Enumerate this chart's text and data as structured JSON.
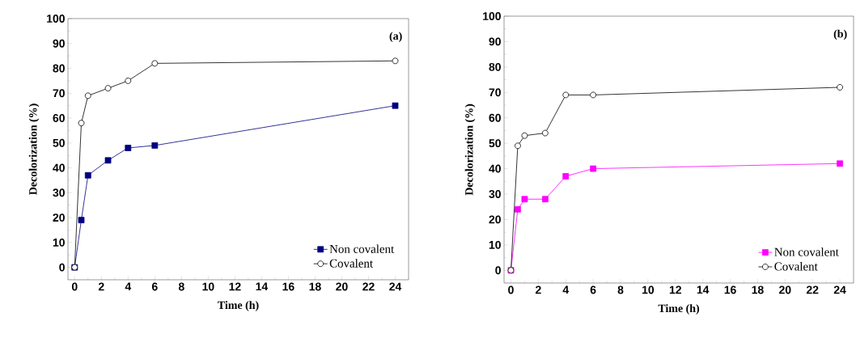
{
  "chart_data": [
    {
      "type": "line",
      "xlabel": "Time (h)",
      "ylabel": "Decolorization (%)",
      "annotations": [
        "(a)"
      ],
      "x": [
        0,
        0.5,
        1,
        2.5,
        4,
        6,
        24
      ],
      "xlim": [
        -0.5,
        25
      ],
      "ylim": [
        -5,
        100
      ],
      "xticks": [
        0,
        2,
        4,
        6,
        8,
        10,
        12,
        14,
        16,
        18,
        20,
        22,
        24
      ],
      "yticks": [
        0,
        10,
        20,
        30,
        40,
        50,
        60,
        70,
        80,
        90,
        100
      ],
      "legend": "bottom right",
      "grid": false,
      "line_style": "solid",
      "series": [
        {
          "name": "Non covalent",
          "color": "#000080",
          "marker": "square",
          "values": [
            0,
            19,
            37,
            43,
            48,
            49,
            65
          ]
        },
        {
          "name": "Covalent",
          "color": "#000000",
          "marker": "circle",
          "values": [
            0,
            58,
            69,
            72,
            75,
            82,
            83
          ]
        }
      ]
    },
    {
      "type": "line",
      "xlabel": "Time (h)",
      "ylabel": "Decolorization (%)",
      "annotations": [
        "(b)"
      ],
      "x": [
        0,
        0.5,
        1,
        2.5,
        4,
        6,
        24
      ],
      "xlim": [
        -0.5,
        25
      ],
      "ylim": [
        -5,
        100
      ],
      "xticks": [
        0,
        2,
        4,
        6,
        8,
        10,
        12,
        14,
        16,
        18,
        20,
        22,
        24
      ],
      "yticks": [
        0,
        10,
        20,
        30,
        40,
        50,
        60,
        70,
        80,
        90,
        100
      ],
      "legend": "bottom right",
      "grid": false,
      "line_style": "solid",
      "series": [
        {
          "name": "Non covalent",
          "color": "#ff00ff",
          "marker": "square",
          "values": [
            0,
            24,
            28,
            28,
            37,
            40,
            42
          ]
        },
        {
          "name": "Covalent",
          "color": "#000000",
          "marker": "circle",
          "values": [
            0,
            49,
            53,
            54,
            69,
            69,
            72
          ]
        }
      ]
    }
  ]
}
